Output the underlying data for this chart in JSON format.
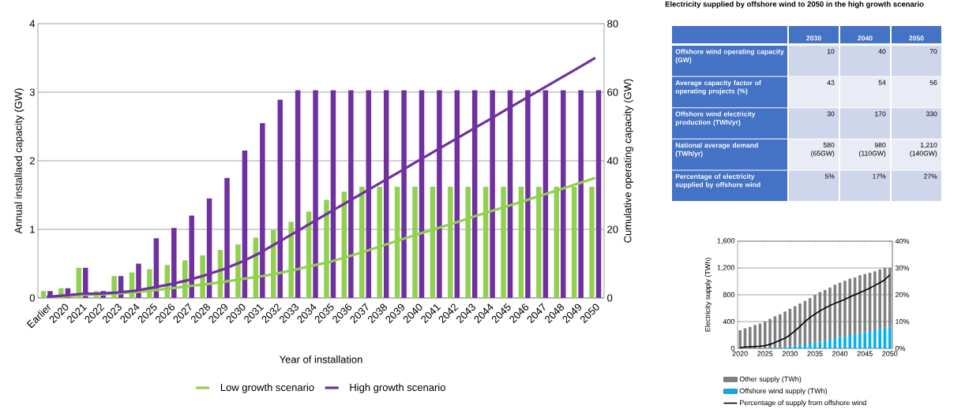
{
  "chart_data": [
    {
      "type": "bar",
      "categories": [
        "Earlier",
        "2020",
        "2021",
        "2022",
        "2023",
        "2024",
        "2025",
        "2026",
        "2027",
        "2028",
        "2029",
        "2030",
        "2031",
        "2032",
        "2033",
        "2034",
        "2035",
        "2036",
        "2037",
        "2038",
        "2039",
        "2040",
        "2041",
        "2042",
        "2043",
        "2044",
        "2045",
        "2046",
        "2047",
        "2048",
        "2049",
        "2050"
      ],
      "series": [
        {
          "type": "bar",
          "color": "#92d050",
          "values": [
            0.1,
            0.14,
            0.44,
            0.1,
            0.32,
            0.37,
            0.42,
            0.48,
            0.55,
            0.62,
            0.7,
            0.78,
            0.88,
            0.99,
            1.11,
            1.26,
            1.43,
            1.55,
            1.62,
            1.62,
            1.62,
            1.62,
            1.62,
            1.62,
            1.62,
            1.62,
            1.62,
            1.62,
            1.62,
            1.62,
            1.62,
            1.62
          ]
        },
        {
          "type": "bar",
          "color": "#7030a0",
          "values": [
            0.1,
            0.14,
            0.44,
            0.1,
            0.32,
            0.5,
            0.87,
            1.02,
            1.2,
            1.45,
            1.75,
            2.15,
            2.55,
            2.89,
            3.03,
            3.03,
            3.03,
            3.03,
            3.03,
            3.03,
            3.03,
            3.03,
            3.03,
            3.03,
            3.03,
            3.03,
            3.03,
            3.03,
            3.03,
            3.03,
            3.03,
            3.03
          ]
        },
        {
          "type": "line",
          "axis": "y2",
          "name": "Low growth scenario",
          "color": "#92d050",
          "values": [
            0.2,
            0.4,
            0.9,
            1,
            1.3,
            1.7,
            2.2,
            2.8,
            3.4,
            4,
            4.7,
            5.5,
            6.2,
            7.1,
            8.2,
            9.4,
            10.5,
            12,
            13.6,
            15.3,
            17,
            18.6,
            20.2,
            21.8,
            23.5,
            25.1,
            26.7,
            28.3,
            30,
            31.6,
            33.3,
            35
          ]
        },
        {
          "type": "line",
          "axis": "y2",
          "name": "High growth scenario",
          "color": "#7030a0",
          "values": [
            0.3,
            0.7,
            1.2,
            1.3,
            1.6,
            2.1,
            3,
            4,
            5.2,
            6.7,
            8.4,
            10.5,
            13,
            16,
            19,
            22,
            25,
            28,
            31,
            34,
            37,
            40,
            43,
            46,
            49,
            52,
            55,
            58,
            61,
            64,
            67,
            70
          ]
        }
      ],
      "ylim": [
        0,
        4
      ],
      "yticks": [
        0,
        1,
        2,
        3,
        4
      ],
      "y2lim": [
        0,
        80
      ],
      "y2ticks": [
        0,
        20,
        40,
        60,
        80
      ],
      "xlabel": "Year of installation",
      "ylabel": "Annual installaed capacity (GW)",
      "y2label": "Cumulative operating capacity (GW)",
      "grid": "y",
      "legend": "bottom"
    },
    {
      "type": "other",
      "title": "Electricity supplied by offshore wind to 2050 in the high growth scenario",
      "categories": [
        "2030",
        "2040",
        "2050"
      ],
      "y_categories": [
        "Offshore wind operating capacity (GW)",
        "Average capacity factor of operating projects (%)",
        "Offshore wind electricity production (TWh/yr)",
        "National average demand (TWh/yr)",
        "Percentage of electricity supplied by offshore wind"
      ],
      "cell_labels": [
        [
          "10",
          "40",
          "70"
        ],
        [
          "43",
          "54",
          "56"
        ],
        [
          "30",
          "170",
          "330"
        ],
        [
          "580 (65GW)",
          "980 (110GW)",
          "1,210 (140GW)"
        ],
        [
          "5%",
          "17%",
          "27%"
        ]
      ]
    },
    {
      "type": "bar",
      "stacked": true,
      "x": [
        2020,
        2021,
        2022,
        2023,
        2024,
        2025,
        2026,
        2027,
        2028,
        2029,
        2030,
        2031,
        2032,
        2033,
        2034,
        2035,
        2036,
        2037,
        2038,
        2039,
        2040,
        2041,
        2042,
        2043,
        2044,
        2045,
        2046,
        2047,
        2048,
        2049,
        2050
      ],
      "series": [
        {
          "type": "bar",
          "name": "Offshore wind supply (TWh)",
          "color": "#00b0f0",
          "values": [
            0,
            0,
            0,
            0,
            0,
            0,
            0,
            10,
            10,
            20,
            30,
            40,
            50,
            60,
            70,
            90,
            100,
            120,
            130,
            150,
            170,
            180,
            200,
            210,
            230,
            240,
            260,
            270,
            290,
            310,
            320
          ]
        },
        {
          "type": "bar",
          "name": "Other supply (TWh)",
          "color": "#808080",
          "values": [
            270,
            300,
            320,
            350,
            370,
            400,
            440,
            470,
            500,
            530,
            560,
            590,
            620,
            650,
            680,
            710,
            740,
            750,
            780,
            800,
            810,
            830,
            840,
            850,
            860,
            870,
            870,
            880,
            890,
            890,
            880
          ]
        },
        {
          "type": "line",
          "axis": "y2",
          "name": "Percentage of supply from offshore wind",
          "color": "#000000",
          "values": [
            0.3,
            0.5,
            0.6,
            0.7,
            0.8,
            1,
            1.5,
            2.2,
            3,
            3.8,
            5,
            6.5,
            8.2,
            10,
            11.5,
            12.8,
            14,
            15,
            16,
            16.8,
            17.5,
            18.3,
            19.2,
            20,
            20.8,
            21.6,
            22.5,
            23.5,
            24.5,
            25.6,
            27.5
          ]
        }
      ],
      "xlim": [
        2019.5,
        2050.5
      ],
      "xticks": [
        2020,
        2025,
        2030,
        2035,
        2040,
        2045,
        2050
      ],
      "ylim": [
        0,
        1600
      ],
      "yticks": [
        0,
        400,
        800,
        {
          "value": 1200,
          "label": "1,200"
        },
        {
          "value": 1600,
          "label": "1,600"
        }
      ],
      "y2lim": [
        0,
        40
      ],
      "y2ticks": [
        {
          "value": 0,
          "label": "0%"
        },
        {
          "value": 10,
          "label": "10%"
        },
        {
          "value": 20,
          "label": "20%"
        },
        {
          "value": 30,
          "label": "30%"
        },
        {
          "value": 40,
          "label": "40%"
        }
      ],
      "ylabel": "Electricity supply (TWh)",
      "grid": "y",
      "legend": "bottom"
    }
  ]
}
